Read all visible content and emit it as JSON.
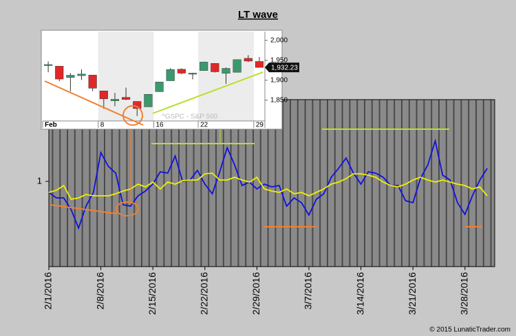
{
  "chart_data": [
    {
      "type": "line",
      "title": "LT wave",
      "source": "© 2015 LunaticTrader.com",
      "x": [
        "2016-02-01",
        "2016-02-02",
        "2016-02-03",
        "2016-02-04",
        "2016-02-05",
        "2016-02-06",
        "2016-02-07",
        "2016-02-08",
        "2016-02-09",
        "2016-02-10",
        "2016-02-11",
        "2016-02-12",
        "2016-02-13",
        "2016-02-14",
        "2016-02-15",
        "2016-02-16",
        "2016-02-17",
        "2016-02-18",
        "2016-02-19",
        "2016-02-20",
        "2016-02-21",
        "2016-02-22",
        "2016-02-23",
        "2016-02-24",
        "2016-02-25",
        "2016-02-26",
        "2016-02-27",
        "2016-02-28",
        "2016-02-29",
        "2016-03-01",
        "2016-03-02",
        "2016-03-03",
        "2016-03-04",
        "2016-03-05",
        "2016-03-06",
        "2016-03-07",
        "2016-03-08",
        "2016-03-09",
        "2016-03-10",
        "2016-03-11",
        "2016-03-12",
        "2016-03-13",
        "2016-03-14",
        "2016-03-15",
        "2016-03-16",
        "2016-03-17",
        "2016-03-18",
        "2016-03-19",
        "2016-03-20",
        "2016-03-21",
        "2016-03-22",
        "2016-03-23",
        "2016-03-24",
        "2016-03-25",
        "2016-03-26",
        "2016-03-27",
        "2016-03-28",
        "2016-03-29",
        "2016-03-30",
        "2016-03-31"
      ],
      "series": [
        {
          "color": "#1010e0",
          "values": [
            0.984,
            0.976,
            0.976,
            0.959,
            0.932,
            0.964,
            0.984,
            1.042,
            1.022,
            1.012,
            0.966,
            0.964,
            0.979,
            0.986,
            0.996,
            1.014,
            1.012,
            1.037,
            1.0,
            1.002,
            1.016,
            0.996,
            0.982,
            1.014,
            1.049,
            1.024,
            0.994,
            0.999,
            0.989,
            0.996,
            0.992,
            0.994,
            0.964,
            0.976,
            0.969,
            0.951,
            0.974,
            0.982,
            1.006,
            1.019,
            1.034,
            1.012,
            0.996,
            1.014,
            1.012,
            1.006,
            0.994,
            0.994,
            0.972,
            0.969,
            1.004,
            1.024,
            1.059,
            1.009,
            1.002,
            0.969,
            0.952,
            0.979,
            1.002,
            1.019
          ]
        },
        {
          "color": "#f0f000",
          "values": [
            0.984,
            0.987,
            0.994,
            0.974,
            0.976,
            0.981,
            0.979,
            0.979,
            0.979,
            0.982,
            0.986,
            0.989,
            0.996,
            0.992,
            0.999,
            0.989,
            0.999,
            0.996,
            1.001,
            1.002,
            1.002,
            1.011,
            1.012,
            1.002,
            1.002,
            1.006,
            1.002,
            0.999,
            1.006,
            0.989,
            0.986,
            0.984,
            0.989,
            0.982,
            0.984,
            0.979,
            0.984,
            0.989,
            0.996,
            0.999,
            1.004,
            1.011,
            1.011,
            1.009,
            1.006,
            0.999,
            0.994,
            0.992,
            0.996,
            1.002,
            1.006,
            1.002,
            0.999,
            1.002,
            0.999,
            0.996,
            0.994,
            0.989,
            0.992,
            0.979
          ]
        }
      ],
      "xlim": [
        "2016-02-01",
        "2016-04-01"
      ],
      "xticks": [
        {
          "value": "2016-02-01",
          "label": "2/1/2016"
        },
        {
          "value": "2016-02-08",
          "label": "2/8/2016"
        },
        {
          "value": "2016-02-15",
          "label": "2/15/2016"
        },
        {
          "value": "2016-02-22",
          "label": "2/22/2016"
        },
        {
          "value": "2016-02-29",
          "label": "2/29/2016"
        },
        {
          "value": "2016-03-07",
          "label": "3/7/2016"
        },
        {
          "value": "2016-03-14",
          "label": "3/14/2016"
        },
        {
          "value": "2016-03-21",
          "label": "3/21/2016"
        },
        {
          "value": "2016-03-28",
          "label": "3/28/2016"
        }
      ],
      "ylim": [
        0.876,
        1.119
      ],
      "yticks": [
        1
      ]
    },
    {
      "type": "candlestick",
      "watermark": "^GSPC - S&P 500",
      "up_color": "#3a9a6e",
      "down_color": "#e02828",
      "categories": [
        "Feb",
        null,
        null,
        null,
        null,
        "8",
        null,
        null,
        null,
        null,
        "16",
        null,
        null,
        null,
        "22",
        null,
        null,
        null,
        null,
        "29"
      ],
      "open": [
        1936.94,
        1935.26,
        1907.07,
        1911.67,
        1913.07,
        1873.25,
        1848.46,
        1857.1,
        1847.0,
        1833.4,
        1871.44,
        1898.8,
        1927.57,
        1916.74,
        1924.44,
        1942.38,
        1917.56,
        1920.03,
        1954.95,
        1947.13
      ],
      "high": [
        1947.2,
        1935.26,
        1918.01,
        1927.35,
        1913.07,
        1873.25,
        1868.25,
        1881.6,
        1847.0,
        1864.78,
        1895.77,
        1930.68,
        1930.0,
        1918.78,
        1946.7,
        1942.38,
        1932.08,
        1951.83,
        1962.96,
        1958.27
      ],
      "low": [
        1920.03,
        1897.29,
        1872.23,
        1900.52,
        1872.65,
        1828.46,
        1834.94,
        1850.32,
        1810.1,
        1833.4,
        1871.44,
        1898.8,
        1915.09,
        1902.17,
        1924.44,
        1919.44,
        1891.0,
        1920.03,
        1945.78,
        1931.81
      ],
      "close": [
        1939.38,
        1903.03,
        1912.53,
        1915.45,
        1880.05,
        1853.44,
        1852.21,
        1851.86,
        1829.08,
        1864.78,
        1895.58,
        1926.82,
        1917.83,
        1917.78,
        1945.5,
        1921.27,
        1929.8,
        1951.7,
        1948.05,
        1932.23
      ],
      "last_label": "1,932.23",
      "ylim": [
        1798,
        2022
      ],
      "yticks": [
        {
          "value": 1850,
          "label": "1,850"
        },
        {
          "value": 1900,
          "label": "1,900"
        },
        {
          "value": 1950,
          "label": "1,950"
        },
        {
          "value": 2000,
          "label": "2,000"
        }
      ]
    }
  ]
}
